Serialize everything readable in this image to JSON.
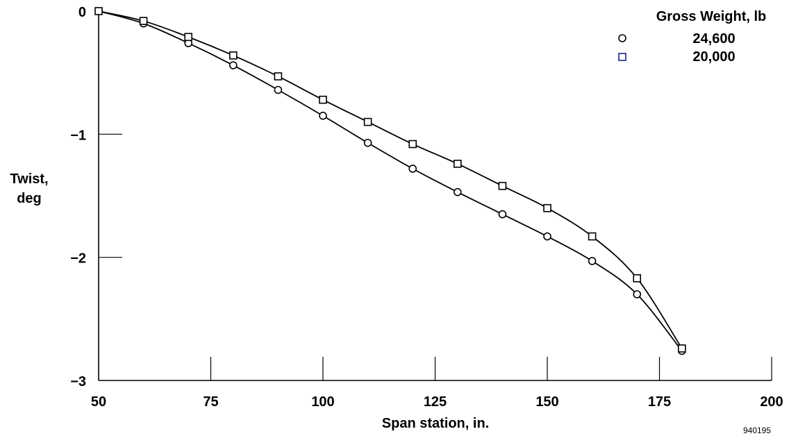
{
  "chart_data": {
    "type": "line",
    "xlabel": "Span station, in.",
    "ylabel": [
      "Twist,",
      "deg"
    ],
    "xlim": [
      50,
      200
    ],
    "ylim": [
      -3,
      0
    ],
    "x_ticks": [
      50,
      75,
      100,
      125,
      150,
      175,
      200
    ],
    "x_tick_labels": [
      "50",
      "75",
      "100",
      "125",
      "150",
      "175",
      "200"
    ],
    "y_ticks": [
      0,
      -1,
      -2,
      -3
    ],
    "y_tick_labels": [
      "0",
      "−1",
      "−2",
      "−3"
    ],
    "legend_title": "Gross Weight, lb",
    "legend_position": "top-right",
    "grid": false,
    "series": [
      {
        "name": "24,600",
        "marker": "circle",
        "x": [
          50,
          60,
          70,
          80,
          90,
          100,
          110,
          120,
          130,
          140,
          150,
          160,
          170,
          180
        ],
        "y": [
          0.0,
          -0.1,
          -0.26,
          -0.44,
          -0.64,
          -0.85,
          -1.07,
          -1.28,
          -1.47,
          -1.65,
          -1.83,
          -2.03,
          -2.3,
          -2.76
        ]
      },
      {
        "name": "20,000",
        "marker": "square",
        "x": [
          50,
          60,
          70,
          80,
          90,
          100,
          110,
          120,
          130,
          140,
          150,
          160,
          170,
          180
        ],
        "y": [
          0.0,
          -0.08,
          -0.21,
          -0.36,
          -0.53,
          -0.72,
          -0.9,
          -1.08,
          -1.24,
          -1.42,
          -1.6,
          -1.83,
          -2.17,
          -2.74
        ]
      }
    ]
  },
  "figure_id": "940195"
}
